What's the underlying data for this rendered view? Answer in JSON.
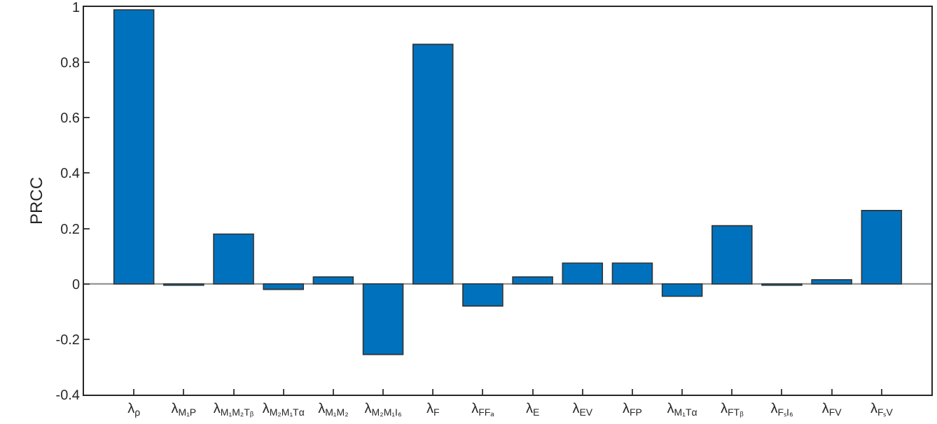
{
  "chart_data": {
    "type": "bar",
    "ylabel": "PRCC",
    "categories": [
      "λ$_{ρ}$",
      "λ$_{M₁P}$",
      "λ$_{M₁M₂Tᵦ}$",
      "λ$_{M₂M₁T}$$_{α}$",
      "λ$_{M₁M₂}$",
      "λ$_{M₂M₁I₆}$",
      "λ$_{F}$",
      "λ$_{FFₐ}$",
      "λ$_{E}$",
      "λ$_{EV}$",
      "λ$_{FP}$",
      "λ$_{M₁T}$$_{α}$",
      "λ$_{FTᵦ}$",
      "λ$_{FₛI₆}$",
      "λ$_{FV}$",
      "λ$_{FₛV}$"
    ],
    "values": [
      0.99,
      -0.005,
      0.18,
      -0.02,
      0.025,
      -0.255,
      0.865,
      -0.08,
      0.025,
      0.075,
      0.075,
      -0.045,
      0.21,
      -0.005,
      0.015,
      0.265
    ],
    "color": "#0072bd",
    "ylim": [
      -0.4,
      1
    ],
    "yticks": [
      -0.4,
      -0.2,
      0,
      0.2,
      0.4,
      0.6,
      0.8,
      1
    ],
    "grid": false,
    "legend": false,
    "ref_lines": [
      {
        "axis": "y",
        "value": 0,
        "color": "#888888"
      }
    ]
  }
}
